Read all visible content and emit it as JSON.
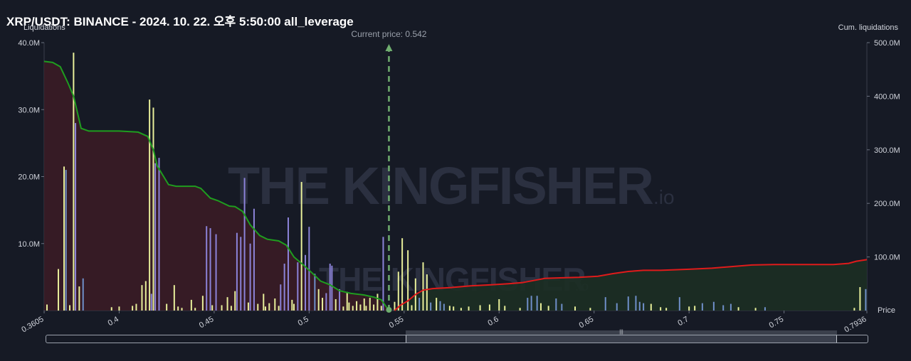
{
  "header": {
    "title": "XRP/USDT: BINANCE - 2024. 10. 22. 오후 5:50:00 all_leverage",
    "left_axis_name": "Liquidations",
    "right_axis_name": "Cum. liquidations",
    "x_axis_name": "Price"
  },
  "watermark": {
    "text": "THE KINGFISHER",
    "suffix": ".io"
  },
  "colors": {
    "background": "#161a25",
    "short_cum_line": "#1f9d1f",
    "long_cum_line": "#e01b1b",
    "short_fill": "#3a1c26",
    "long_fill": "#1c2f23",
    "bar_yellow": "#e8ef9a",
    "bar_purple": "#8b82d8",
    "bar_blue": "#6f8fc9",
    "current_price_line": "#6fae6f"
  },
  "chart_data": {
    "type": "bar",
    "title": "XRP/USDT: BINANCE - 2024. 10. 22. 오후 5:50:00 all_leverage",
    "xlabel": "Price",
    "ylabel": "Liquidations",
    "y2label": "Cum. liquidations",
    "xlim": [
      0.3605,
      0.7936
    ],
    "ylim": [
      0,
      40000000
    ],
    "y2lim": [
      0,
      500000000
    ],
    "x_ticks": [
      {
        "value": 0.3605,
        "label": "0.3605"
      },
      {
        "value": 0.4,
        "label": "0.4"
      },
      {
        "value": 0.45,
        "label": "0.45"
      },
      {
        "value": 0.5,
        "label": "0.5"
      },
      {
        "value": 0.55,
        "label": "0.55"
      },
      {
        "value": 0.6,
        "label": "0.6"
      },
      {
        "value": 0.65,
        "label": "0.65"
      },
      {
        "value": 0.7,
        "label": "0.7"
      },
      {
        "value": 0.75,
        "label": "0.75"
      },
      {
        "value": 0.7936,
        "label": "0.7936"
      }
    ],
    "y_ticks": [
      {
        "value": 10000000,
        "label": "10.0M"
      },
      {
        "value": 20000000,
        "label": "20.0M"
      },
      {
        "value": 30000000,
        "label": "30.0M"
      },
      {
        "value": 40000000,
        "label": "40.0M"
      }
    ],
    "y2_ticks": [
      {
        "value": 100000000,
        "label": "100.0M"
      },
      {
        "value": 200000000,
        "label": "200.0M"
      },
      {
        "value": 300000000,
        "label": "300.0M"
      },
      {
        "value": 400000000,
        "label": "400.0M"
      },
      {
        "value": 500000000,
        "label": "500.0M"
      }
    ],
    "current_price": {
      "value": 0.542,
      "label": "Current price: 0.542"
    },
    "grid": false,
    "bars": [
      {
        "x": 0.362,
        "y": 900000,
        "color": "yellow"
      },
      {
        "x": 0.368,
        "y": 6200000,
        "color": "yellow"
      },
      {
        "x": 0.371,
        "y": 21500000,
        "color": "yellow"
      },
      {
        "x": 0.372,
        "y": 21000000,
        "color": "blue"
      },
      {
        "x": 0.374,
        "y": 800000,
        "color": "yellow"
      },
      {
        "x": 0.376,
        "y": 38500000,
        "color": "yellow"
      },
      {
        "x": 0.377,
        "y": 28000000,
        "color": "purple"
      },
      {
        "x": 0.379,
        "y": 3600000,
        "color": "yellow"
      },
      {
        "x": 0.381,
        "y": 4800000,
        "color": "blue"
      },
      {
        "x": 0.396,
        "y": 500000,
        "color": "yellow"
      },
      {
        "x": 0.4,
        "y": 600000,
        "color": "yellow"
      },
      {
        "x": 0.407,
        "y": 700000,
        "color": "yellow"
      },
      {
        "x": 0.409,
        "y": 1000000,
        "color": "yellow"
      },
      {
        "x": 0.412,
        "y": 3800000,
        "color": "yellow"
      },
      {
        "x": 0.414,
        "y": 4400000,
        "color": "yellow"
      },
      {
        "x": 0.416,
        "y": 31500000,
        "color": "yellow"
      },
      {
        "x": 0.417,
        "y": 2500000,
        "color": "purple"
      },
      {
        "x": 0.418,
        "y": 30300000,
        "color": "yellow"
      },
      {
        "x": 0.419,
        "y": 22000000,
        "color": "purple"
      },
      {
        "x": 0.421,
        "y": 22800000,
        "color": "purple"
      },
      {
        "x": 0.425,
        "y": 1000000,
        "color": "yellow"
      },
      {
        "x": 0.429,
        "y": 3800000,
        "color": "yellow"
      },
      {
        "x": 0.431,
        "y": 600000,
        "color": "yellow"
      },
      {
        "x": 0.433,
        "y": 400000,
        "color": "yellow"
      },
      {
        "x": 0.438,
        "y": 1600000,
        "color": "yellow"
      },
      {
        "x": 0.44,
        "y": 400000,
        "color": "yellow"
      },
      {
        "x": 0.444,
        "y": 2200000,
        "color": "yellow"
      },
      {
        "x": 0.446,
        "y": 12600000,
        "color": "purple"
      },
      {
        "x": 0.448,
        "y": 12300000,
        "color": "purple"
      },
      {
        "x": 0.449,
        "y": 800000,
        "color": "yellow"
      },
      {
        "x": 0.451,
        "y": 11400000,
        "color": "purple"
      },
      {
        "x": 0.454,
        "y": 800000,
        "color": "yellow"
      },
      {
        "x": 0.457,
        "y": 2000000,
        "color": "yellow"
      },
      {
        "x": 0.459,
        "y": 700000,
        "color": "yellow"
      },
      {
        "x": 0.461,
        "y": 2900000,
        "color": "yellow"
      },
      {
        "x": 0.462,
        "y": 11600000,
        "color": "purple"
      },
      {
        "x": 0.464,
        "y": 11000000,
        "color": "purple"
      },
      {
        "x": 0.466,
        "y": 19800000,
        "color": "purple"
      },
      {
        "x": 0.468,
        "y": 1200000,
        "color": "yellow"
      },
      {
        "x": 0.469,
        "y": 10000000,
        "color": "purple"
      },
      {
        "x": 0.471,
        "y": 15200000,
        "color": "purple"
      },
      {
        "x": 0.473,
        "y": 1000000,
        "color": "yellow"
      },
      {
        "x": 0.476,
        "y": 2500000,
        "color": "yellow"
      },
      {
        "x": 0.477,
        "y": 600000,
        "color": "yellow"
      },
      {
        "x": 0.479,
        "y": 1100000,
        "color": "yellow"
      },
      {
        "x": 0.482,
        "y": 1800000,
        "color": "yellow"
      },
      {
        "x": 0.484,
        "y": 700000,
        "color": "yellow"
      },
      {
        "x": 0.485,
        "y": 3900000,
        "color": "purple"
      },
      {
        "x": 0.487,
        "y": 7000000,
        "color": "purple"
      },
      {
        "x": 0.489,
        "y": 13900000,
        "color": "purple"
      },
      {
        "x": 0.491,
        "y": 1600000,
        "color": "yellow"
      },
      {
        "x": 0.492,
        "y": 1000000,
        "color": "yellow"
      },
      {
        "x": 0.494,
        "y": 7200000,
        "color": "purple"
      },
      {
        "x": 0.496,
        "y": 19200000,
        "color": "yellow"
      },
      {
        "x": 0.498,
        "y": 8300000,
        "color": "purple"
      },
      {
        "x": 0.5,
        "y": 12500000,
        "color": "purple"
      },
      {
        "x": 0.503,
        "y": 5500000,
        "color": "blue"
      },
      {
        "x": 0.505,
        "y": 3200000,
        "color": "yellow"
      },
      {
        "x": 0.507,
        "y": 1900000,
        "color": "yellow"
      },
      {
        "x": 0.509,
        "y": 2600000,
        "color": "purple"
      },
      {
        "x": 0.511,
        "y": 7000000,
        "color": "purple"
      },
      {
        "x": 0.512,
        "y": 6700000,
        "color": "purple"
      },
      {
        "x": 0.514,
        "y": 1700000,
        "color": "yellow"
      },
      {
        "x": 0.516,
        "y": 3200000,
        "color": "purple"
      },
      {
        "x": 0.518,
        "y": 600000,
        "color": "yellow"
      },
      {
        "x": 0.52,
        "y": 2800000,
        "color": "yellow"
      },
      {
        "x": 0.521,
        "y": 1200000,
        "color": "yellow"
      },
      {
        "x": 0.523,
        "y": 700000,
        "color": "yellow"
      },
      {
        "x": 0.525,
        "y": 1400000,
        "color": "yellow"
      },
      {
        "x": 0.527,
        "y": 900000,
        "color": "yellow"
      },
      {
        "x": 0.529,
        "y": 1800000,
        "color": "yellow"
      },
      {
        "x": 0.53,
        "y": 700000,
        "color": "yellow"
      },
      {
        "x": 0.532,
        "y": 1900000,
        "color": "yellow"
      },
      {
        "x": 0.534,
        "y": 900000,
        "color": "yellow"
      },
      {
        "x": 0.536,
        "y": 2500000,
        "color": "yellow"
      },
      {
        "x": 0.538,
        "y": 700000,
        "color": "yellow"
      },
      {
        "x": 0.539,
        "y": 11000000,
        "color": "purple"
      },
      {
        "x": 0.545,
        "y": 1300000,
        "color": "yellow"
      },
      {
        "x": 0.547,
        "y": 5800000,
        "color": "yellow"
      },
      {
        "x": 0.549,
        "y": 10800000,
        "color": "yellow"
      },
      {
        "x": 0.552,
        "y": 9000000,
        "color": "yellow"
      },
      {
        "x": 0.554,
        "y": 800000,
        "color": "yellow"
      },
      {
        "x": 0.556,
        "y": 4800000,
        "color": "yellow"
      },
      {
        "x": 0.558,
        "y": 1900000,
        "color": "blue"
      },
      {
        "x": 0.56,
        "y": 7200000,
        "color": "yellow"
      },
      {
        "x": 0.562,
        "y": 5400000,
        "color": "yellow"
      },
      {
        "x": 0.564,
        "y": 1200000,
        "color": "blue"
      },
      {
        "x": 0.567,
        "y": 1900000,
        "color": "yellow"
      },
      {
        "x": 0.569,
        "y": 1400000,
        "color": "blue"
      },
      {
        "x": 0.571,
        "y": 1000000,
        "color": "blue"
      },
      {
        "x": 0.574,
        "y": 700000,
        "color": "yellow"
      },
      {
        "x": 0.576,
        "y": 600000,
        "color": "yellow"
      },
      {
        "x": 0.58,
        "y": 400000,
        "color": "yellow"
      },
      {
        "x": 0.584,
        "y": 600000,
        "color": "yellow"
      },
      {
        "x": 0.59,
        "y": 800000,
        "color": "yellow"
      },
      {
        "x": 0.595,
        "y": 900000,
        "color": "yellow"
      },
      {
        "x": 0.6,
        "y": 1700000,
        "color": "yellow"
      },
      {
        "x": 0.603,
        "y": 700000,
        "color": "yellow"
      },
      {
        "x": 0.611,
        "y": 400000,
        "color": "yellow"
      },
      {
        "x": 0.615,
        "y": 1900000,
        "color": "blue"
      },
      {
        "x": 0.617,
        "y": 2200000,
        "color": "blue"
      },
      {
        "x": 0.62,
        "y": 2200000,
        "color": "blue"
      },
      {
        "x": 0.622,
        "y": 1100000,
        "color": "yellow"
      },
      {
        "x": 0.626,
        "y": 700000,
        "color": "yellow"
      },
      {
        "x": 0.63,
        "y": 1800000,
        "color": "blue"
      },
      {
        "x": 0.633,
        "y": 1000000,
        "color": "blue"
      },
      {
        "x": 0.64,
        "y": 600000,
        "color": "yellow"
      },
      {
        "x": 0.648,
        "y": 400000,
        "color": "yellow"
      },
      {
        "x": 0.656,
        "y": 2000000,
        "color": "blue"
      },
      {
        "x": 0.662,
        "y": 1100000,
        "color": "blue"
      },
      {
        "x": 0.668,
        "y": 2100000,
        "color": "blue"
      },
      {
        "x": 0.672,
        "y": 2200000,
        "color": "blue"
      },
      {
        "x": 0.674,
        "y": 1300000,
        "color": "blue"
      },
      {
        "x": 0.676,
        "y": 1100000,
        "color": "blue"
      },
      {
        "x": 0.68,
        "y": 1000000,
        "color": "yellow"
      },
      {
        "x": 0.685,
        "y": 500000,
        "color": "yellow"
      },
      {
        "x": 0.688,
        "y": 400000,
        "color": "yellow"
      },
      {
        "x": 0.695,
        "y": 2000000,
        "color": "blue"
      },
      {
        "x": 0.7,
        "y": 600000,
        "color": "yellow"
      },
      {
        "x": 0.703,
        "y": 700000,
        "color": "yellow"
      },
      {
        "x": 0.707,
        "y": 1100000,
        "color": "blue"
      },
      {
        "x": 0.713,
        "y": 1300000,
        "color": "blue"
      },
      {
        "x": 0.718,
        "y": 800000,
        "color": "blue"
      },
      {
        "x": 0.722,
        "y": 1000000,
        "color": "blue"
      },
      {
        "x": 0.726,
        "y": 500000,
        "color": "yellow"
      },
      {
        "x": 0.735,
        "y": 400000,
        "color": "yellow"
      },
      {
        "x": 0.74,
        "y": 500000,
        "color": "blue"
      },
      {
        "x": 0.787,
        "y": 400000,
        "color": "yellow"
      },
      {
        "x": 0.79,
        "y": 3500000,
        "color": "yellow"
      },
      {
        "x": 0.793,
        "y": 3200000,
        "color": "blue"
      }
    ],
    "series": [
      {
        "kind": "cumulative_short",
        "points": [
          [
            0.3605,
            465000000
          ],
          [
            0.365,
            463000000
          ],
          [
            0.369,
            455000000
          ],
          [
            0.373,
            425000000
          ],
          [
            0.376,
            400000000
          ],
          [
            0.38,
            340000000
          ],
          [
            0.384,
            335000000
          ],
          [
            0.4,
            335000000
          ],
          [
            0.41,
            333000000
          ],
          [
            0.415,
            325000000
          ],
          [
            0.418,
            300000000
          ],
          [
            0.42,
            270000000
          ],
          [
            0.426,
            235000000
          ],
          [
            0.43,
            232000000
          ],
          [
            0.44,
            232000000
          ],
          [
            0.443,
            228000000
          ],
          [
            0.448,
            210000000
          ],
          [
            0.452,
            205000000
          ],
          [
            0.458,
            195000000
          ],
          [
            0.461,
            194000000
          ],
          [
            0.465,
            185000000
          ],
          [
            0.469,
            160000000
          ],
          [
            0.474,
            140000000
          ],
          [
            0.478,
            133000000
          ],
          [
            0.484,
            130000000
          ],
          [
            0.488,
            122000000
          ],
          [
            0.492,
            100000000
          ],
          [
            0.497,
            85000000
          ],
          [
            0.501,
            72000000
          ],
          [
            0.506,
            55000000
          ],
          [
            0.511,
            48000000
          ],
          [
            0.516,
            37000000
          ],
          [
            0.522,
            32000000
          ],
          [
            0.529,
            29000000
          ],
          [
            0.534,
            25000000
          ],
          [
            0.538,
            20000000
          ],
          [
            0.541,
            5000000
          ],
          [
            0.542,
            0
          ]
        ]
      },
      {
        "kind": "cumulative_long",
        "points": [
          [
            0.545,
            0
          ],
          [
            0.548,
            10000000
          ],
          [
            0.552,
            18000000
          ],
          [
            0.556,
            30000000
          ],
          [
            0.56,
            38000000
          ],
          [
            0.565,
            41000000
          ],
          [
            0.575,
            43000000
          ],
          [
            0.585,
            46000000
          ],
          [
            0.596,
            48000000
          ],
          [
            0.605,
            50000000
          ],
          [
            0.612,
            52000000
          ],
          [
            0.618,
            56000000
          ],
          [
            0.624,
            60000000
          ],
          [
            0.632,
            61000000
          ],
          [
            0.642,
            62000000
          ],
          [
            0.652,
            64000000
          ],
          [
            0.66,
            69000000
          ],
          [
            0.668,
            73000000
          ],
          [
            0.676,
            75000000
          ],
          [
            0.685,
            75000000
          ],
          [
            0.7,
            77000000
          ],
          [
            0.712,
            79000000
          ],
          [
            0.722,
            82000000
          ],
          [
            0.733,
            85000000
          ],
          [
            0.745,
            86000000
          ],
          [
            0.76,
            86000000
          ],
          [
            0.776,
            86000000
          ],
          [
            0.784,
            88000000
          ],
          [
            0.788,
            92000000
          ],
          [
            0.7936,
            95000000
          ]
        ]
      }
    ]
  }
}
